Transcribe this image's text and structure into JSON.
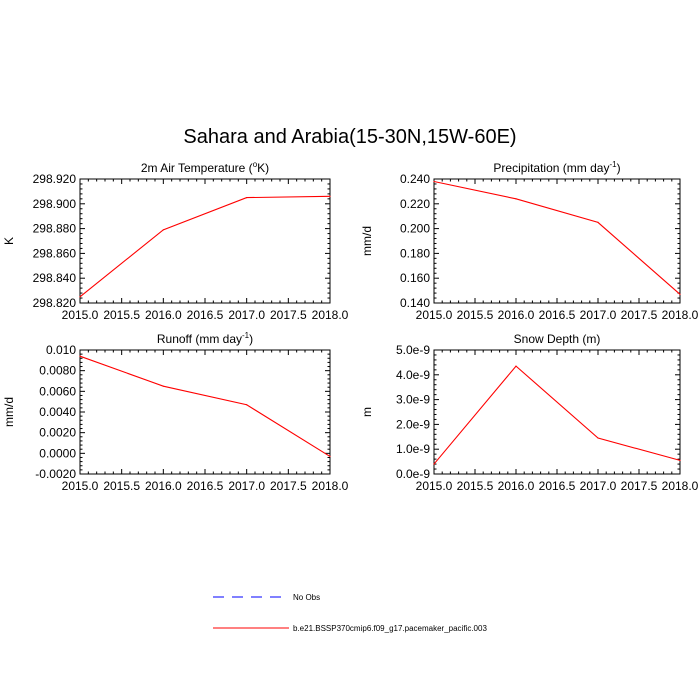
{
  "figure": {
    "title": "Sahara and Arabia(15-30N,15W-60E)"
  },
  "chart_data": [
    {
      "type": "line",
      "title": "2m Air Temperature (",
      "title_sup": "o",
      "title_tail": "K)",
      "xlabel": "",
      "ylabel": "K",
      "x": [
        2015.0,
        2016.0,
        2017.0,
        2018.0
      ],
      "xlim": [
        2015.0,
        2018.0
      ],
      "xticks": [
        "2015.0",
        "2015.5",
        "2016.0",
        "2016.5",
        "2017.0",
        "2017.5",
        "2018.0"
      ],
      "ylim": [
        298.82,
        298.92
      ],
      "yticks": [
        "298.820",
        "298.840",
        "298.860",
        "298.880",
        "298.900",
        "298.920"
      ],
      "series": [
        {
          "name": "b.e21.BSSP370cmip6.f09_g17.pacemaker_pacific.003",
          "color": "#ff0000",
          "values": [
            298.825,
            298.879,
            298.905,
            298.906
          ]
        }
      ]
    },
    {
      "type": "line",
      "title": "Precipitation (mm day",
      "title_sup": "-1",
      "title_tail": ")",
      "xlabel": "",
      "ylabel": "mm/d",
      "x": [
        2015.0,
        2016.0,
        2017.0,
        2018.0
      ],
      "xlim": [
        2015.0,
        2018.0
      ],
      "xticks": [
        "2015.0",
        "2015.5",
        "2016.0",
        "2016.5",
        "2017.0",
        "2017.5",
        "2018.0"
      ],
      "ylim": [
        0.14,
        0.24
      ],
      "yticks": [
        "0.140",
        "0.160",
        "0.180",
        "0.200",
        "0.220",
        "0.240"
      ],
      "series": [
        {
          "name": "b.e21.BSSP370cmip6.f09_g17.pacemaker_pacific.003",
          "color": "#ff0000",
          "values": [
            0.238,
            0.224,
            0.205,
            0.147
          ]
        }
      ]
    },
    {
      "type": "line",
      "title": "Runoff (mm day",
      "title_sup": "-1",
      "title_tail": ")",
      "xlabel": "",
      "ylabel": "mm/d",
      "x": [
        2015.0,
        2016.0,
        2017.0,
        2018.0
      ],
      "xlim": [
        2015.0,
        2018.0
      ],
      "xticks": [
        "2015.0",
        "2015.5",
        "2016.0",
        "2016.5",
        "2017.0",
        "2017.5",
        "2018.0"
      ],
      "ylim": [
        -0.002,
        0.01
      ],
      "yticks": [
        "-0.0020",
        "0.0000",
        "0.0020",
        "0.0040",
        "0.0060",
        "0.0080",
        "0.010"
      ],
      "series": [
        {
          "name": "b.e21.BSSP370cmip6.f09_g17.pacemaker_pacific.003",
          "color": "#ff0000",
          "values": [
            0.0094,
            0.0065,
            0.0047,
            -0.0003
          ]
        }
      ]
    },
    {
      "type": "line",
      "title": "Snow Depth (m)",
      "title_sup": "",
      "title_tail": "",
      "xlabel": "",
      "ylabel": "m",
      "x": [
        2015.0,
        2016.0,
        2017.0,
        2018.0
      ],
      "xlim": [
        2015.0,
        2018.0
      ],
      "xticks": [
        "2015.0",
        "2015.5",
        "2016.0",
        "2016.5",
        "2017.0",
        "2017.5",
        "2018.0"
      ],
      "ylim": [
        0,
        5e-09
      ],
      "yticks": [
        "0.0e-9",
        "1.0e-9",
        "2.0e-9",
        "3.0e-9",
        "4.0e-9",
        "5.0e-9"
      ],
      "series": [
        {
          "name": "b.e21.BSSP370cmip6.f09_g17.pacemaker_pacific.003",
          "color": "#ff0000",
          "values": [
            4e-10,
            4.35e-09,
            1.45e-09,
            5.5e-10
          ]
        }
      ]
    }
  ],
  "legend": {
    "placement": "bottom-center",
    "items": [
      {
        "label": "No Obs",
        "color": "#0000ff",
        "style": "dashed"
      },
      {
        "label": "b.e21.BSSP370cmip6.f09_g17.pacemaker_pacific.003",
        "color": "#ff0000",
        "style": "solid"
      }
    ]
  }
}
